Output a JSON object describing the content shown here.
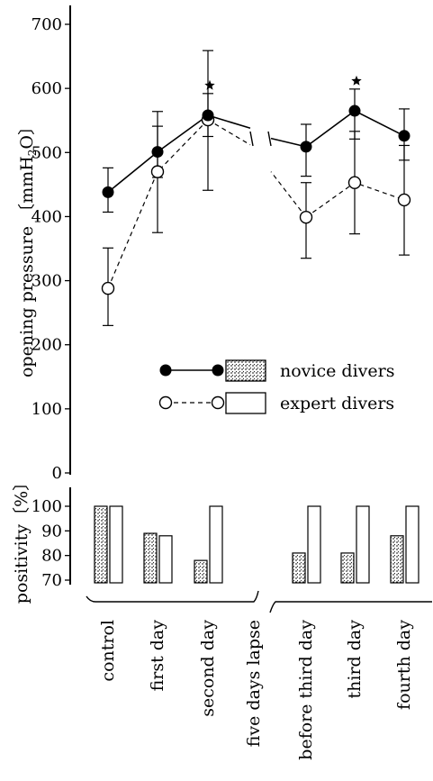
{
  "chart_data": [
    {
      "type": "line",
      "ylabel_main": "opening pressure",
      "ylabel_unit_pre": "〔mmH",
      "ylabel_unit_sub": "2",
      "ylabel_unit_post": "O〕",
      "ylim": [
        0,
        720
      ],
      "yticks": [
        "0",
        "100",
        "200",
        "300",
        "400",
        "500",
        "600",
        "700"
      ],
      "ytick_values": [
        0,
        100,
        200,
        300,
        400,
        500,
        600,
        700
      ],
      "categories": [
        "control",
        "first day",
        "second day",
        "five days lapse",
        "before third day",
        "third day",
        "fourth day"
      ],
      "series": [
        {
          "name": "novice divers",
          "marker": "filled",
          "line": "solid",
          "points": [
            {
              "x": "control",
              "y": 438,
              "low": 407,
              "high": 476
            },
            {
              "x": "first day",
              "y": 501,
              "low": 461,
              "high": 541
            },
            {
              "x": "second day",
              "y": 558,
              "low": 525,
              "high": 592,
              "star": true
            },
            {
              "x": "before third day",
              "y": 509,
              "low": 463,
              "high": 544
            },
            {
              "x": "third day",
              "y": 565,
              "low": 521,
              "high": 599,
              "star": true
            },
            {
              "x": "fourth day",
              "y": 526,
              "low": 488,
              "high": 568
            }
          ]
        },
        {
          "name": "expert divers",
          "marker": "open",
          "line": "dashed",
          "points": [
            {
              "x": "control",
              "y": 288,
              "low": 230,
              "high": 351
            },
            {
              "x": "first day",
              "y": 470,
              "low": 375,
              "high": 564
            },
            {
              "x": "second day",
              "y": 551,
              "low": 441,
              "high": 659
            },
            {
              "x": "before third day",
              "y": 399,
              "low": 335,
              "high": 453
            },
            {
              "x": "third day",
              "y": 453,
              "low": 373,
              "high": 533
            },
            {
              "x": "fourth day",
              "y": 426,
              "low": 340,
              "high": 511
            }
          ]
        }
      ],
      "legend": {
        "placement": "lower-right",
        "entries": [
          "novice divers",
          "expert divers"
        ]
      }
    },
    {
      "type": "bar",
      "ylabel": "positivity〔%〕",
      "ylim": [
        70,
        100
      ],
      "yticks": [
        "70",
        "80",
        "90",
        "100"
      ],
      "ytick_values": [
        70,
        80,
        90,
        100
      ],
      "categories": [
        "control",
        "first day",
        "second day",
        "before third day",
        "third day",
        "fourth day"
      ],
      "series": [
        {
          "name": "novice divers",
          "pattern": "hatched",
          "values": [
            100,
            89,
            78,
            81,
            81,
            88
          ]
        },
        {
          "name": "expert divers",
          "pattern": "open",
          "values": [
            100,
            88,
            100,
            100,
            100,
            100
          ]
        }
      ]
    }
  ],
  "colors": {
    "ink": "#000000",
    "background": "#ffffff"
  }
}
